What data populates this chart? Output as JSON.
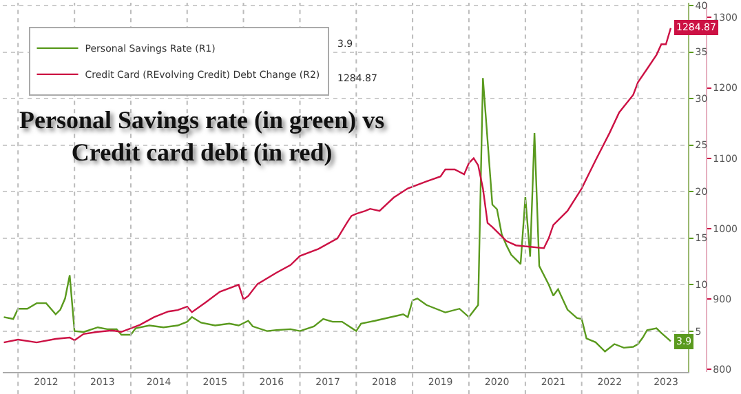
{
  "chart_data": {
    "type": "line",
    "title": "Personal Savings rate (in green) vs\nCredit card debt (in red)",
    "xlim": [
      "2011-09-24",
      "2023-11-20"
    ],
    "xticks": [
      {
        "value": "2012-01-01",
        "label": null
      },
      {
        "value": "2013-01-01",
        "label": null
      },
      {
        "value": "2014-01-01",
        "label": null
      },
      {
        "value": "2015-01-01",
        "label": null
      },
      {
        "value": "2016-01-01",
        "label": null
      },
      {
        "value": "2017-01-01",
        "label": null
      },
      {
        "value": "2018-01-01",
        "label": null
      },
      {
        "value": "2019-01-01",
        "label": null
      },
      {
        "value": "2020-01-01",
        "label": null
      },
      {
        "value": "2021-01-01",
        "label": null
      },
      {
        "value": "2022-01-01",
        "label": null
      },
      {
        "value": "2023-01-01",
        "label": null
      },
      {
        "value": "2012-07-01",
        "label": "2012"
      },
      {
        "value": "2013-07-01",
        "label": "2013"
      },
      {
        "value": "2014-07-01",
        "label": "2014"
      },
      {
        "value": "2015-07-01",
        "label": "2015"
      },
      {
        "value": "2016-07-01",
        "label": "2016"
      },
      {
        "value": "2017-07-01",
        "label": "2017"
      },
      {
        "value": "2018-07-01",
        "label": "2018"
      },
      {
        "value": "2019-07-01",
        "label": "2019"
      },
      {
        "value": "2020-07-01",
        "label": "2020"
      },
      {
        "value": "2021-07-01",
        "label": "2021"
      },
      {
        "value": "2022-07-01",
        "label": "2022"
      },
      {
        "value": "2023-07-01",
        "label": "2023"
      }
    ],
    "ylim": [
      0.6,
      40.3
    ],
    "yticks": [
      5,
      10,
      15,
      20,
      25,
      30,
      35,
      40
    ],
    "y2lim": [
      796,
      1321
    ],
    "y2ticks": [
      800,
      900,
      1000,
      1100,
      1200,
      1300
    ],
    "grid": true,
    "legend": "top left",
    "series": [
      {
        "name": "Personal Savings Rate (R1)",
        "color": "#5a9a1e",
        "axis": "y",
        "x": [
          "2011-10",
          "2011-12",
          "2012-01",
          "2012-03",
          "2012-05",
          "2012-07",
          "2012-09",
          "2012-10",
          "2012-11",
          "2012-12",
          "2013-01",
          "2013-03",
          "2013-06",
          "2013-08",
          "2013-10",
          "2013-11",
          "2014-01",
          "2014-02",
          "2014-05",
          "2014-08",
          "2014-11",
          "2015-01",
          "2015-02",
          "2015-04",
          "2015-07",
          "2015-10",
          "2015-12",
          "2016-02",
          "2016-03",
          "2016-06",
          "2016-08",
          "2016-11",
          "2017-01",
          "2017-04",
          "2017-06",
          "2017-08",
          "2017-10",
          "2018-01",
          "2018-02",
          "2018-04",
          "2018-05",
          "2018-11",
          "2018-12",
          "2019-01",
          "2019-02",
          "2019-04",
          "2019-08",
          "2019-11",
          "2020-01",
          "2020-03",
          "2020-04",
          "2020-06",
          "2020-07",
          "2020-08",
          "2020-09",
          "2020-10",
          "2020-12",
          "2021-01",
          "2021-02",
          "2021-03",
          "2021-04",
          "2021-06",
          "2021-07",
          "2021-08",
          "2021-10",
          "2021-12",
          "2022-01",
          "2022-02",
          "2022-04",
          "2022-06",
          "2022-08",
          "2022-10",
          "2022-12",
          "2023-01",
          "2023-02",
          "2023-03",
          "2023-05",
          "2023-06",
          "2023-08"
        ],
        "values": [
          6.5,
          6.3,
          7.4,
          7.4,
          8.0,
          8.0,
          6.8,
          7.3,
          8.5,
          11.0,
          5.0,
          4.9,
          5.4,
          5.2,
          5.2,
          4.6,
          4.6,
          5.3,
          5.6,
          5.4,
          5.6,
          6.0,
          6.5,
          5.9,
          5.6,
          5.8,
          5.6,
          6.1,
          5.5,
          5.0,
          5.1,
          5.2,
          5.0,
          5.5,
          6.3,
          6.0,
          6.0,
          5.0,
          5.8,
          6.0,
          6.1,
          6.8,
          6.5,
          8.3,
          8.5,
          7.8,
          7.0,
          7.4,
          6.5,
          7.8,
          32.2,
          18.6,
          18.1,
          15.4,
          14.2,
          13.2,
          12.2,
          19.4,
          13.0,
          26.3,
          12.0,
          10.0,
          8.8,
          9.5,
          7.3,
          6.4,
          6.3,
          4.2,
          3.8,
          2.8,
          3.6,
          3.2,
          3.3,
          3.6,
          4.3,
          5.1,
          5.3,
          4.8,
          3.9
        ],
        "value_labels": [
          null,
          null,
          null,
          null,
          null,
          null,
          null,
          null,
          null,
          null,
          null,
          null,
          null,
          null,
          null,
          null,
          null,
          null,
          null,
          null,
          null,
          null,
          null,
          null,
          null,
          null,
          null,
          null,
          null,
          null,
          null,
          null,
          null,
          null,
          null,
          null,
          null,
          null,
          null,
          null,
          null,
          null,
          null,
          null,
          null,
          null,
          null,
          null,
          null,
          null,
          null,
          null,
          null,
          null,
          null,
          null,
          null,
          null,
          null,
          null,
          null,
          null,
          null,
          null,
          null,
          null,
          null,
          null,
          null,
          null,
          null,
          null,
          null,
          null,
          null,
          null,
          null,
          null,
          "3.9"
        ]
      },
      {
        "name": "Credit Card (REvolving Credit) Debt Change (R2)",
        "color": "#cc1144",
        "axis": "y2",
        "x": [
          "2011-10",
          "2012-01",
          "2012-05",
          "2012-09",
          "2012-12",
          "2013-01",
          "2013-03",
          "2013-06",
          "2013-09",
          "2013-11",
          "2014-03",
          "2014-06",
          "2014-09",
          "2014-11",
          "2015-01",
          "2015-02",
          "2015-05",
          "2015-08",
          "2015-12",
          "2016-01",
          "2016-02",
          "2016-04",
          "2016-08",
          "2016-11",
          "2017-01",
          "2017-05",
          "2017-09",
          "2017-11",
          "2017-12",
          "2018-01",
          "2018-03",
          "2018-04",
          "2018-06",
          "2018-09",
          "2018-12",
          "2019-04",
          "2019-07",
          "2019-08",
          "2019-10",
          "2019-12",
          "2020-01",
          "2020-02",
          "2020-03",
          "2020-04",
          "2020-05",
          "2020-06",
          "2020-09",
          "2020-11",
          "2021-02",
          "2021-05",
          "2021-06",
          "2021-07",
          "2021-10",
          "2022-01",
          "2022-04",
          "2022-07",
          "2022-09",
          "2022-12",
          "2023-01",
          "2023-03",
          "2023-05",
          "2023-06",
          "2023-07",
          "2023-08"
        ],
        "values": [
          838,
          842,
          838,
          843,
          845,
          841,
          850,
          853,
          855,
          853,
          863,
          874,
          882,
          884,
          889,
          881,
          895,
          910,
          920,
          899,
          904,
          921,
          937,
          948,
          961,
          971,
          986,
          1008,
          1018,
          1021,
          1025,
          1028,
          1025,
          1044,
          1057,
          1067,
          1074,
          1084,
          1084,
          1077,
          1093,
          1100,
          1090,
          1057,
          1008,
          1002,
          982,
          976,
          974,
          972,
          986,
          1005,
          1025,
          1057,
          1097,
          1136,
          1165,
          1190,
          1208,
          1227,
          1247,
          1262,
          1262,
          1284.87
        ],
        "value_labels": [
          null,
          null,
          null,
          null,
          null,
          null,
          null,
          null,
          null,
          null,
          null,
          null,
          null,
          null,
          null,
          null,
          null,
          null,
          null,
          null,
          null,
          null,
          null,
          null,
          null,
          null,
          null,
          null,
          null,
          null,
          null,
          null,
          null,
          null,
          null,
          null,
          null,
          null,
          null,
          null,
          null,
          null,
          null,
          null,
          null,
          null,
          null,
          null,
          null,
          null,
          null,
          null,
          null,
          null,
          null,
          null,
          null,
          null,
          null,
          null,
          null,
          null,
          null,
          "1284.87"
        ]
      }
    ]
  }
}
